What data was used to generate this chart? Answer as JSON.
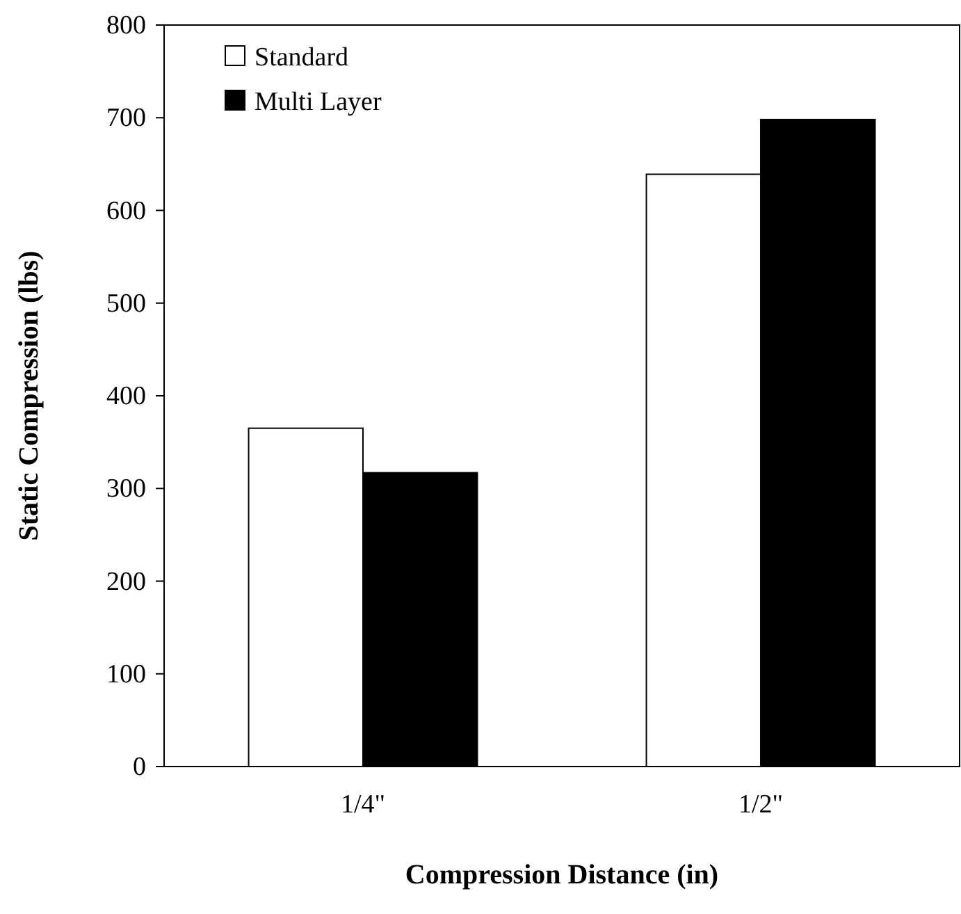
{
  "chart_data": {
    "type": "bar",
    "xlabel": "Compression Distance (in)",
    "ylabel": "Static Compression (lbs)",
    "categories": [
      "1/4\"",
      "1/2\""
    ],
    "series": [
      {
        "name": "Standard",
        "color": "#ffffff",
        "values": [
          365,
          639
        ]
      },
      {
        "name": "Multi Layer",
        "color": "#000000",
        "values": [
          317,
          698
        ]
      }
    ],
    "ylim": [
      0,
      800
    ],
    "yticks": [
      0,
      100,
      200,
      300,
      400,
      500,
      600,
      700,
      800
    ],
    "grid": false,
    "legend": "top left"
  }
}
